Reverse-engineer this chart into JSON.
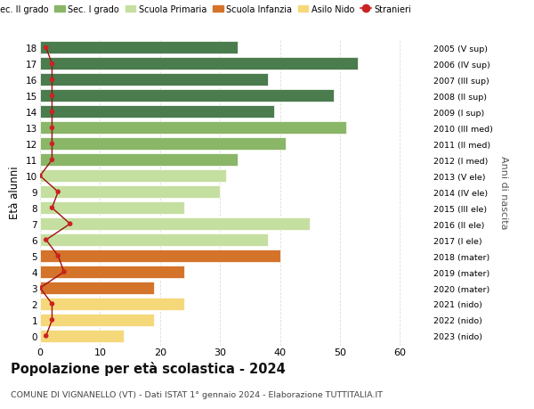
{
  "ages": [
    18,
    17,
    16,
    15,
    14,
    13,
    12,
    11,
    10,
    9,
    8,
    7,
    6,
    5,
    4,
    3,
    2,
    1,
    0
  ],
  "bar_values": [
    33,
    53,
    38,
    49,
    39,
    51,
    41,
    33,
    31,
    30,
    24,
    45,
    38,
    40,
    24,
    19,
    24,
    19,
    14
  ],
  "bar_colors": [
    "#4a7c4e",
    "#4a7c4e",
    "#4a7c4e",
    "#4a7c4e",
    "#4a7c4e",
    "#8ab668",
    "#8ab668",
    "#8ab668",
    "#c5dfa0",
    "#c5dfa0",
    "#c5dfa0",
    "#c5dfa0",
    "#c5dfa0",
    "#d4732a",
    "#d4732a",
    "#d4732a",
    "#f5d87a",
    "#f5d87a",
    "#f5d87a"
  ],
  "stranieri_values": [
    1,
    2,
    2,
    2,
    2,
    2,
    2,
    2,
    0,
    3,
    2,
    5,
    1,
    3,
    4,
    0,
    2,
    2,
    1
  ],
  "right_labels": [
    "2005 (V sup)",
    "2006 (IV sup)",
    "2007 (III sup)",
    "2008 (II sup)",
    "2009 (I sup)",
    "2010 (III med)",
    "2011 (II med)",
    "2012 (I med)",
    "2013 (V ele)",
    "2014 (IV ele)",
    "2015 (III ele)",
    "2016 (II ele)",
    "2017 (I ele)",
    "2018 (mater)",
    "2019 (mater)",
    "2020 (mater)",
    "2021 (nido)",
    "2022 (nido)",
    "2023 (nido)"
  ],
  "legend_labels": [
    "Sec. II grado",
    "Sec. I grado",
    "Scuola Primaria",
    "Scuola Infanzia",
    "Asilo Nido",
    "Stranieri"
  ],
  "legend_colors": [
    "#4a7c4e",
    "#8ab668",
    "#c5dfa0",
    "#d4732a",
    "#f5d87a",
    "#cc2222"
  ],
  "ylabel_left": "Età alunni",
  "ylabel_right": "Anni di nascita",
  "title": "Popolazione per età scolastica - 2024",
  "subtitle": "COMUNE DI VIGNANELLO (VT) - Dati ISTAT 1° gennaio 2024 - Elaborazione TUTTITALIA.IT",
  "xlim": [
    0,
    65
  ],
  "bar_height": 0.78,
  "background_color": "#ffffff",
  "grid_color": "#dddddd",
  "stranieri_color": "#cc2222",
  "stranieri_line_color": "#a01010"
}
